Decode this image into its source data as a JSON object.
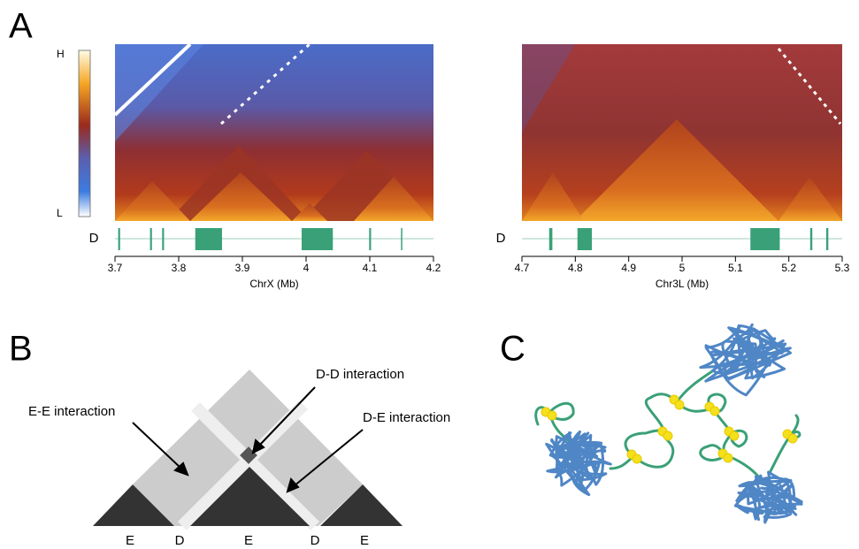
{
  "panel_a": {
    "label": "A",
    "colorbar": {
      "high": "H",
      "low": "L"
    },
    "maps": [
      {
        "track_label": "D",
        "xlabel": "ChrX (Mb)",
        "xlim": [
          3.7,
          4.2
        ],
        "xticks": [
          3.7,
          3.8,
          3.9,
          4,
          4.1,
          4.2
        ],
        "domains": [
          [
            3.705,
            3.708
          ],
          [
            3.755,
            3.758
          ],
          [
            3.774,
            3.777
          ],
          [
            3.826,
            3.868
          ],
          [
            3.993,
            4.042
          ],
          [
            4.099,
            4.102
          ],
          [
            4.149,
            4.151
          ]
        ]
      },
      {
        "track_label": "D",
        "xlabel": "Chr3L (Mb)",
        "xlim": [
          4.7,
          5.3
        ],
        "xticks": [
          4.7,
          4.8,
          4.9,
          5,
          5.1,
          5.2,
          5.3
        ],
        "domains": [
          [
            4.751,
            4.757
          ],
          [
            4.804,
            4.831
          ],
          [
            5.128,
            5.183
          ],
          [
            5.24,
            5.244
          ],
          [
            5.27,
            5.274
          ]
        ]
      }
    ]
  },
  "panel_b": {
    "label": "B",
    "annotations": [
      "E-E interaction",
      "D-D interaction",
      "D-E interaction"
    ],
    "base_labels": [
      "E",
      "D",
      "E",
      "D",
      "E"
    ]
  },
  "panel_c": {
    "label": "C"
  }
}
